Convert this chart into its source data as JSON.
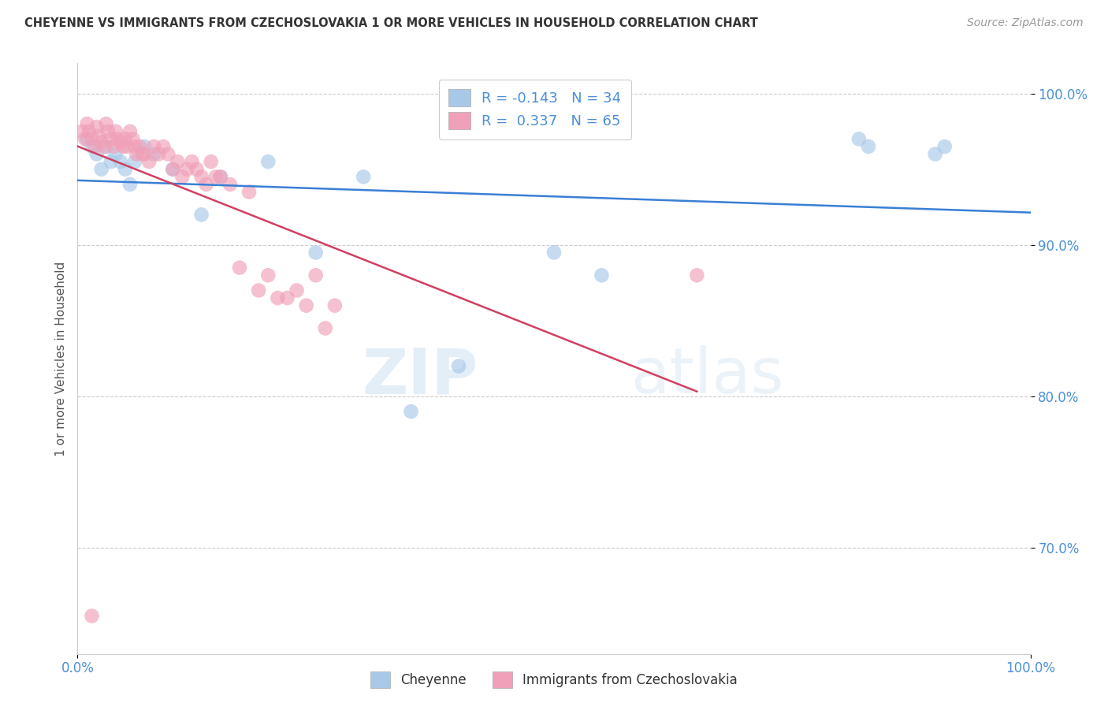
{
  "title": "CHEYENNE VS IMMIGRANTS FROM CZECHOSLOVAKIA 1 OR MORE VEHICLES IN HOUSEHOLD CORRELATION CHART",
  "source": "Source: ZipAtlas.com",
  "ylabel": "1 or more Vehicles in Household",
  "xlabel": "",
  "legend_label1": "Cheyenne",
  "legend_label2": "Immigrants from Czechoslovakia",
  "R1": -0.143,
  "N1": 34,
  "R2": 0.337,
  "N2": 65,
  "cheyenne_color": "#a8c8e8",
  "immigrants_color": "#f0a0b8",
  "regression_color1": "#3a7fd5",
  "regression_color2": "#d04060",
  "xlim": [
    0.0,
    100.0
  ],
  "ylim": [
    63.0,
    102.0
  ],
  "yticks": [
    70.0,
    80.0,
    90.0,
    100.0
  ],
  "ytick_labels": [
    "70.0%",
    "80.0%",
    "90.0%",
    "100.0%"
  ],
  "xtick_labels": [
    "0.0%",
    "100.0%"
  ],
  "xticks": [
    0.0,
    100.0
  ],
  "cheyenne_x": [
    1.0,
    1.5,
    2.0,
    2.5,
    3.0,
    3.5,
    4.0,
    4.5,
    5.0,
    5.5,
    6.0,
    7.0,
    8.0,
    10.0,
    13.0,
    15.0,
    20.0,
    25.0,
    30.0,
    35.0,
    40.0,
    50.0,
    55.0,
    82.0,
    83.0,
    90.0,
    91.0
  ],
  "cheyenne_y": [
    97.0,
    96.5,
    96.0,
    95.0,
    96.5,
    95.5,
    96.0,
    95.5,
    95.0,
    94.0,
    95.5,
    96.5,
    96.0,
    95.0,
    92.0,
    94.5,
    95.5,
    89.5,
    94.5,
    79.0,
    82.0,
    89.5,
    88.0,
    97.0,
    96.5,
    96.0,
    96.5
  ],
  "immigrants_x": [
    0.5,
    0.8,
    1.0,
    1.2,
    1.5,
    1.8,
    2.0,
    2.2,
    2.5,
    2.8,
    3.0,
    3.2,
    3.5,
    3.8,
    4.0,
    4.2,
    4.5,
    4.8,
    5.0,
    5.2,
    5.5,
    5.8,
    6.0,
    6.2,
    6.5,
    6.8,
    7.0,
    7.5,
    8.0,
    8.5,
    9.0,
    9.5,
    10.0,
    10.5,
    11.0,
    11.5,
    12.0,
    12.5,
    13.0,
    13.5,
    14.0,
    14.5,
    15.0,
    16.0,
    17.0,
    18.0,
    19.0,
    20.0,
    21.0,
    22.0,
    23.0,
    24.0,
    25.0,
    26.0,
    27.0,
    1.5,
    65.0
  ],
  "immigrants_y": [
    97.5,
    97.0,
    98.0,
    97.5,
    97.0,
    96.5,
    97.8,
    97.2,
    96.8,
    96.5,
    98.0,
    97.5,
    97.0,
    96.5,
    97.5,
    97.0,
    96.8,
    96.5,
    97.0,
    96.5,
    97.5,
    97.0,
    96.5,
    96.0,
    96.5,
    96.0,
    96.0,
    95.5,
    96.5,
    96.0,
    96.5,
    96.0,
    95.0,
    95.5,
    94.5,
    95.0,
    95.5,
    95.0,
    94.5,
    94.0,
    95.5,
    94.5,
    94.5,
    94.0,
    88.5,
    93.5,
    87.0,
    88.0,
    86.5,
    86.5,
    87.0,
    86.0,
    88.0,
    84.5,
    86.0,
    65.5,
    88.0
  ],
  "watermark_zip": "ZIP",
  "watermark_atlas": "atlas",
  "background_color": "#ffffff",
  "grid_color": "#cccccc",
  "title_color": "#333333",
  "source_color": "#999999",
  "tick_color": "#4a90d9",
  "ylabel_color": "#555555"
}
